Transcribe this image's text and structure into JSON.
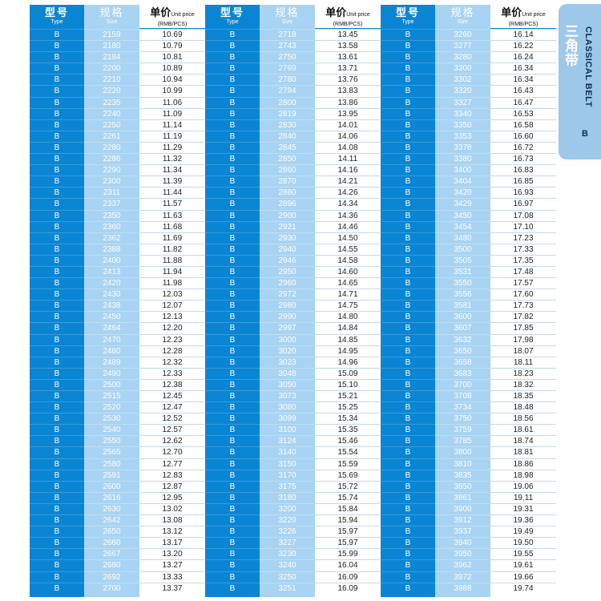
{
  "header": {
    "type_cn": "型号",
    "type_en": "Type",
    "size_cn": "规格",
    "size_en": "Size",
    "price_cn": "单价",
    "price_en_small": "Unit price",
    "price_unit": "(RMB/PCS)"
  },
  "side_tab": {
    "cn": "三角带",
    "en": "CLASSICAL BELT",
    "type": "B"
  },
  "groups": [
    {
      "types": [
        "B",
        "B",
        "B",
        "B",
        "B",
        "B",
        "B",
        "B",
        "B",
        "B",
        "B",
        "B",
        "B",
        "B",
        "B",
        "B",
        "B",
        "B",
        "B",
        "B",
        "B",
        "B",
        "B",
        "B",
        "B",
        "B",
        "B",
        "B",
        "B",
        "B",
        "B",
        "B",
        "B",
        "B",
        "B",
        "B",
        "B",
        "B",
        "B",
        "B",
        "B",
        "B",
        "B",
        "B",
        "B",
        "B",
        "B",
        "B",
        "B",
        "B"
      ],
      "sizes": [
        "2159",
        "2180",
        "2184",
        "2200",
        "2210",
        "2220",
        "2235",
        "2240",
        "2250",
        "2261",
        "2280",
        "2286",
        "2290",
        "2300",
        "2311",
        "2337",
        "2350",
        "2360",
        "2362",
        "2388",
        "2400",
        "2413",
        "2420",
        "2430",
        "2438",
        "2450",
        "2464",
        "2470",
        "2480",
        "2489",
        "2490",
        "2500",
        "2515",
        "2520",
        "2530",
        "2540",
        "2550",
        "2565",
        "2580",
        "2591",
        "2600",
        "2616",
        "2630",
        "2642",
        "2650",
        "2660",
        "2667",
        "2680",
        "2692",
        "2700"
      ],
      "prices": [
        "10.69",
        "10.79",
        "10.81",
        "10.89",
        "10.94",
        "10.99",
        "11.06",
        "11.09",
        "11.14",
        "11.19",
        "11.29",
        "11.32",
        "11.34",
        "11.39",
        "11.44",
        "11.57",
        "11.63",
        "11.68",
        "11.69",
        "11.82",
        "11.88",
        "11.94",
        "11.98",
        "12.03",
        "12.07",
        "12.13",
        "12.20",
        "12.23",
        "12.28",
        "12.32",
        "12.33",
        "12.38",
        "12.45",
        "12.47",
        "12.52",
        "12.57",
        "12.62",
        "12.70",
        "12.77",
        "12.83",
        "12.87",
        "12.95",
        "13.02",
        "13.08",
        "13.12",
        "13.17",
        "13.20",
        "13.27",
        "13.33",
        "13.37"
      ]
    },
    {
      "types": [
        "B",
        "B",
        "B",
        "B",
        "B",
        "B",
        "B",
        "B",
        "B",
        "B",
        "B",
        "B",
        "B",
        "B",
        "B",
        "B",
        "B",
        "B",
        "B",
        "B",
        "B",
        "B",
        "B",
        "B",
        "B",
        "B",
        "B",
        "B",
        "B",
        "B",
        "B",
        "B",
        "B",
        "B",
        "B",
        "B",
        "B",
        "B",
        "B",
        "B",
        "B",
        "B",
        "B",
        "B",
        "B",
        "B",
        "B",
        "B",
        "B",
        "B"
      ],
      "sizes": [
        "2718",
        "2743",
        "2750",
        "2769",
        "2780",
        "2794",
        "2800",
        "2819",
        "2830",
        "2840",
        "2845",
        "2850",
        "2860",
        "2870",
        "2880",
        "2896",
        "2900",
        "2921",
        "2930",
        "2940",
        "2946",
        "2950",
        "2960",
        "2972",
        "2980",
        "2990",
        "2997",
        "3000",
        "3020",
        "3023",
        "3048",
        "3050",
        "3073",
        "3080",
        "3099",
        "3100",
        "3124",
        "3140",
        "3150",
        "3170",
        "3175",
        "3180",
        "3200",
        "3220",
        "3226",
        "3227",
        "3230",
        "3240",
        "3250",
        "3251"
      ],
      "prices": [
        "13.45",
        "13.58",
        "13.61",
        "13.71",
        "13.76",
        "13.83",
        "13.86",
        "13.95",
        "14.01",
        "14.06",
        "14.08",
        "14.11",
        "14.16",
        "14.21",
        "14.26",
        "14.34",
        "14.36",
        "14.46",
        "14.50",
        "14.55",
        "14.58",
        "14.60",
        "14.65",
        "14.71",
        "14.75",
        "14.80",
        "14.84",
        "14.85",
        "14.95",
        "14.96",
        "15.09",
        "15.10",
        "15.21",
        "15.25",
        "15.34",
        "15.35",
        "15.46",
        "15.54",
        "15.59",
        "15.69",
        "15.72",
        "15.74",
        "15.84",
        "15.94",
        "15.97",
        "15.97",
        "15.99",
        "16.04",
        "16.09",
        "16.09"
      ]
    },
    {
      "types": [
        "B",
        "B",
        "B",
        "B",
        "B",
        "B",
        "B",
        "B",
        "B",
        "B",
        "B",
        "B",
        "B",
        "B",
        "B",
        "B",
        "B",
        "B",
        "B",
        "B",
        "B",
        "B",
        "B",
        "B",
        "B",
        "B",
        "B",
        "B",
        "B",
        "B",
        "B",
        "B",
        "B",
        "B",
        "B",
        "B",
        "B",
        "B",
        "B",
        "B",
        "B",
        "B",
        "B",
        "B",
        "B",
        "B",
        "B",
        "B",
        "B",
        "B"
      ],
      "sizes": [
        "3260",
        "3277",
        "3280",
        "3300",
        "3302",
        "3320",
        "3327",
        "3340",
        "3350",
        "3353",
        "3378",
        "3380",
        "3400",
        "3404",
        "3420",
        "3429",
        "3450",
        "3454",
        "3480",
        "3500",
        "3505",
        "3531",
        "3550",
        "3556",
        "3581",
        "3600",
        "3607",
        "3632",
        "3650",
        "3658",
        "3683",
        "3700",
        "3708",
        "3734",
        "3750",
        "3759",
        "3785",
        "3800",
        "3810",
        "3835",
        "3850",
        "3861",
        "3900",
        "3912",
        "3937",
        "3940",
        "3950",
        "3962",
        "3972",
        "3988"
      ],
      "prices": [
        "16.14",
        "16.22",
        "16.24",
        "16.34",
        "16.34",
        "16.43",
        "16.47",
        "16.53",
        "16.58",
        "16.60",
        "16.72",
        "16.73",
        "16.83",
        "16.85",
        "16.93",
        "16.97",
        "17.08",
        "17.10",
        "17.23",
        "17.33",
        "17.35",
        "17.48",
        "17.57",
        "17.60",
        "17.73",
        "17.82",
        "17.85",
        "17.98",
        "18.07",
        "18.11",
        "18.23",
        "18.32",
        "18.35",
        "18.48",
        "18.56",
        "18.61",
        "18.74",
        "18.81",
        "18.86",
        "18.98",
        "19.06",
        "19.11",
        "19.31",
        "19.36",
        "19.49",
        "19.50",
        "19.55",
        "19.61",
        "19.66",
        "19.74"
      ]
    }
  ]
}
